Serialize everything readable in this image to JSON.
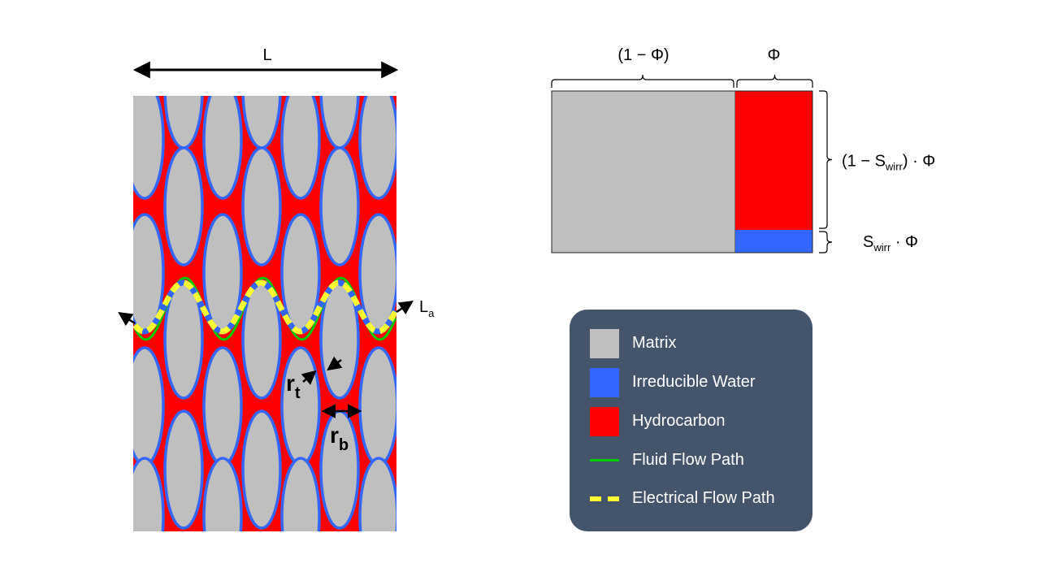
{
  "colors": {
    "matrix": "#bfbfbf",
    "water": "#3366ff",
    "hydrocarbon": "#ff0000",
    "fluid_path": "#00cc00",
    "electrical_path": "#ffff33",
    "legend_bg": "#44546a"
  },
  "pore_diagram": {
    "width_label": "L",
    "apparent_length_label": "L",
    "apparent_length_subscript": "a",
    "throat_label": "r",
    "throat_subscript": "t",
    "body_label": "r",
    "body_subscript": "b"
  },
  "volume_diagram": {
    "matrix_fraction_label": "(1 − Φ)",
    "porosity_label": "Φ",
    "hydrocarbon_label_prefix": "(1 − S",
    "hydrocarbon_label_sub": "wirr",
    "hydrocarbon_label_suffix": ") · Φ",
    "water_label_prefix": "S",
    "water_label_sub": "wirr",
    "water_label_suffix": " · Φ",
    "porosity_fraction": 0.295,
    "irreducible_water_fraction": 0.14
  },
  "legend": {
    "items": [
      {
        "label": "Matrix",
        "kind": "box",
        "color_key": "matrix"
      },
      {
        "label": "Irreducible Water",
        "kind": "box",
        "color_key": "water"
      },
      {
        "label": "Hydrocarbon",
        "kind": "box",
        "color_key": "hydrocarbon"
      },
      {
        "label": "Fluid Flow Path",
        "kind": "line",
        "color_key": "fluid_path"
      },
      {
        "label": "Electrical Flow Path",
        "kind": "dash",
        "color_key": "electrical_path"
      }
    ]
  }
}
